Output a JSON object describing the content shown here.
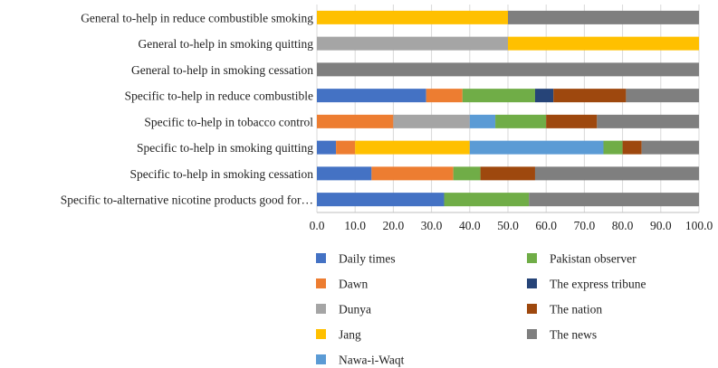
{
  "chart_data": {
    "type": "bar",
    "orientation": "horizontal",
    "stacked": true,
    "title": "",
    "xlabel": "",
    "ylabel": "",
    "xlim": [
      0,
      100
    ],
    "xticks": [
      "0.0",
      "10.0",
      "20.0",
      "30.0",
      "40.0",
      "50.0",
      "60.0",
      "70.0",
      "80.0",
      "90.0",
      "100.0"
    ],
    "categories": [
      "General to-help in reduce combustible smoking",
      "General to-help in smoking quitting",
      "General to-help in smoking cessation",
      "Specific to-help in reduce combustible",
      "Specific to-help in tobacco control",
      "Specific to-help in smoking quitting",
      "Specific to-help in smoking cessation",
      "Specific to-alternative nicotine products good for…"
    ],
    "series": [
      {
        "name": "Daily times",
        "color": "#4472c4",
        "values": [
          0,
          0,
          0,
          28.6,
          0,
          5.0,
          14.3,
          33.3
        ]
      },
      {
        "name": "Dawn",
        "color": "#ed7d31",
        "values": [
          0,
          0,
          0,
          9.5,
          20.0,
          5.0,
          21.4,
          0
        ]
      },
      {
        "name": "Dunya",
        "color": "#a5a5a5",
        "values": [
          0,
          50.0,
          0,
          0,
          20.0,
          0,
          0,
          0
        ]
      },
      {
        "name": "Jang",
        "color": "#ffc000",
        "values": [
          50.0,
          50.0,
          0,
          0,
          0,
          30.0,
          0,
          0
        ]
      },
      {
        "name": "Nawa-i-Waqt",
        "color": "#5b9bd5",
        "values": [
          0,
          0,
          0,
          0,
          6.7,
          35.0,
          0,
          0
        ]
      },
      {
        "name": "Pakistan observer",
        "color": "#70ad47",
        "values": [
          0,
          0,
          0,
          19.0,
          13.3,
          5.0,
          7.1,
          22.2
        ]
      },
      {
        "name": "The express tribune",
        "color": "#264478",
        "values": [
          0,
          0,
          0,
          4.8,
          0,
          0,
          0,
          0
        ]
      },
      {
        "name": "The nation",
        "color": "#9e480e",
        "values": [
          0,
          0,
          0,
          19.0,
          13.3,
          5.0,
          14.3,
          0
        ]
      },
      {
        "name": "The news",
        "color": "#7f7f7f",
        "values": [
          50.0,
          0,
          100.0,
          19.1,
          26.7,
          15.0,
          42.9,
          44.5
        ]
      }
    ],
    "legend": {
      "position": "bottom",
      "columns": 2
    }
  }
}
